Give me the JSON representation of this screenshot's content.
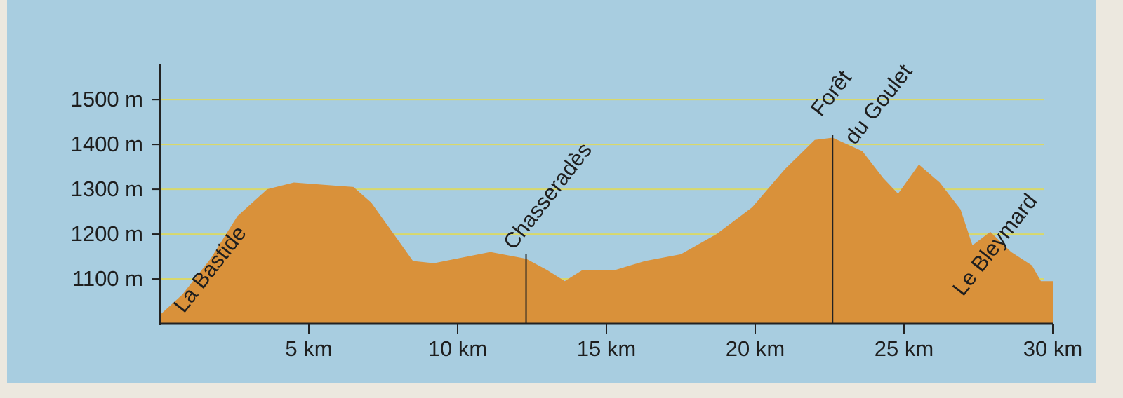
{
  "chart_data": {
    "type": "area",
    "x": [
      0,
      0.75,
      1.7,
      2.6,
      3.6,
      4.5,
      5.5,
      6.5,
      7.1,
      7.8,
      8.5,
      9.2,
      11.1,
      12.3,
      13.0,
      13.6,
      14.2,
      15.3,
      16.3,
      17.5,
      18.7,
      19.9,
      21.0,
      22.0,
      22.6,
      23.6,
      24.3,
      24.8,
      25.5,
      26.2,
      26.9,
      27.3,
      27.9,
      28.6,
      29.3,
      29.6,
      30
    ],
    "values": [
      1020,
      1065,
      1145,
      1240,
      1300,
      1315,
      1310,
      1305,
      1270,
      1205,
      1140,
      1135,
      1160,
      1145,
      1120,
      1095,
      1120,
      1120,
      1140,
      1155,
      1200,
      1260,
      1345,
      1410,
      1415,
      1385,
      1325,
      1290,
      1355,
      1315,
      1255,
      1175,
      1205,
      1160,
      1130,
      1095,
      1095
    ],
    "color": "#d9913a",
    "xlim": [
      0,
      30
    ],
    "ylim": [
      1000,
      1580
    ],
    "xticks": [
      {
        "value": 5,
        "label": "5 km"
      },
      {
        "value": 10,
        "label": "10 km"
      },
      {
        "value": 15,
        "label": "15 km"
      },
      {
        "value": 20,
        "label": "20 km"
      },
      {
        "value": 25,
        "label": "25 km"
      },
      {
        "value": 30,
        "label": "30 km"
      }
    ],
    "yticks": [
      {
        "value": 1100,
        "label": "1100 m"
      },
      {
        "value": 1200,
        "label": "1200 m"
      },
      {
        "value": 1300,
        "label": "1300 m"
      },
      {
        "value": 1400,
        "label": "1400 m"
      },
      {
        "value": 1500,
        "label": "1500 m"
      }
    ],
    "grid": true,
    "annotations": [
      {
        "lines": [
          "La Bastide"
        ]
      },
      {
        "lines": [
          "Chasseradès"
        ],
        "x": 12.3
      },
      {
        "lines": [
          "Forêt",
          "du Goulet"
        ],
        "x": 22.6
      },
      {
        "lines": [
          "Le Bleymard"
        ]
      }
    ]
  }
}
